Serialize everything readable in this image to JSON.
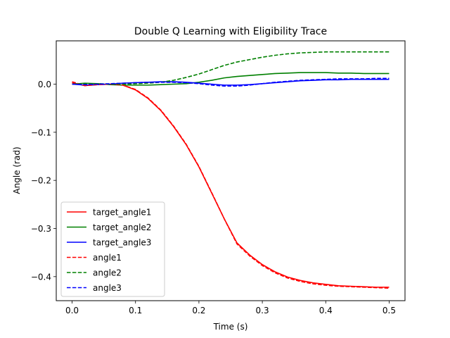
{
  "chart_data": {
    "type": "line",
    "title": "Double Q Learning with Eligibility Trace",
    "xlabel": "Time (s)",
    "ylabel": "Angle (rad)",
    "xlim": [
      -0.025,
      0.525
    ],
    "ylim": [
      -0.45,
      0.09
    ],
    "xticks": [
      0.0,
      0.1,
      0.2,
      0.3,
      0.4,
      0.5
    ],
    "xtick_labels": [
      "0.0",
      "0.1",
      "0.2",
      "0.3",
      "0.4",
      "0.5"
    ],
    "yticks": [
      0.0,
      -0.1,
      -0.2,
      -0.3,
      -0.4
    ],
    "ytick_labels": [
      "0.0",
      "−0.1",
      "−0.2",
      "−0.3",
      "−0.4"
    ],
    "grid": false,
    "legend_position": "lower-left",
    "series": [
      {
        "name": "target_angle1",
        "color": "#ff0000",
        "dash": "solid",
        "x": [
          0.0,
          0.02,
          0.04,
          0.06,
          0.08,
          0.1,
          0.12,
          0.14,
          0.16,
          0.18,
          0.2,
          0.22,
          0.24,
          0.26,
          0.28,
          0.3,
          0.32,
          0.34,
          0.36,
          0.38,
          0.4,
          0.42,
          0.44,
          0.46,
          0.48,
          0.5
        ],
        "y": [
          0.003,
          -0.003,
          -0.001,
          0.0,
          -0.002,
          -0.012,
          -0.03,
          -0.055,
          -0.088,
          -0.126,
          -0.172,
          -0.226,
          -0.28,
          -0.33,
          -0.355,
          -0.375,
          -0.39,
          -0.401,
          -0.408,
          -0.413,
          -0.416,
          -0.419,
          -0.42,
          -0.421,
          -0.422,
          -0.422
        ]
      },
      {
        "name": "target_angle2",
        "color": "#008000",
        "dash": "solid",
        "x": [
          0.0,
          0.02,
          0.04,
          0.06,
          0.08,
          0.1,
          0.12,
          0.14,
          0.16,
          0.18,
          0.2,
          0.22,
          0.24,
          0.26,
          0.28,
          0.3,
          0.32,
          0.34,
          0.36,
          0.38,
          0.4,
          0.42,
          0.44,
          0.46,
          0.48,
          0.5
        ],
        "y": [
          0.0,
          0.002,
          0.001,
          -0.001,
          -0.002,
          -0.002,
          -0.002,
          -0.001,
          0.0,
          0.001,
          0.004,
          0.008,
          0.013,
          0.016,
          0.018,
          0.02,
          0.022,
          0.023,
          0.024,
          0.024,
          0.024,
          0.023,
          0.023,
          0.022,
          0.022,
          0.022
        ]
      },
      {
        "name": "target_angle3",
        "color": "#0000ff",
        "dash": "solid",
        "x": [
          0.0,
          0.02,
          0.04,
          0.06,
          0.08,
          0.1,
          0.12,
          0.14,
          0.16,
          0.18,
          0.2,
          0.22,
          0.24,
          0.26,
          0.28,
          0.3,
          0.32,
          0.34,
          0.36,
          0.38,
          0.4,
          0.42,
          0.44,
          0.46,
          0.48,
          0.5
        ],
        "y": [
          0.0,
          -0.002,
          -0.001,
          0.0,
          0.002,
          0.003,
          0.004,
          0.005,
          0.005,
          0.004,
          0.002,
          0.0,
          -0.002,
          -0.002,
          -0.001,
          0.001,
          0.003,
          0.005,
          0.007,
          0.008,
          0.009,
          0.009,
          0.01,
          0.01,
          0.01,
          0.01
        ]
      },
      {
        "name": "angle1",
        "color": "#ff0000",
        "dash": "dashed",
        "x": [
          0.0,
          0.02,
          0.04,
          0.06,
          0.08,
          0.1,
          0.12,
          0.14,
          0.16,
          0.18,
          0.2,
          0.22,
          0.24,
          0.26,
          0.28,
          0.3,
          0.32,
          0.34,
          0.36,
          0.38,
          0.4,
          0.42,
          0.44,
          0.46,
          0.48,
          0.5
        ],
        "y": [
          0.005,
          -0.003,
          -0.001,
          0.0,
          -0.002,
          -0.011,
          -0.029,
          -0.054,
          -0.087,
          -0.125,
          -0.171,
          -0.225,
          -0.28,
          -0.332,
          -0.357,
          -0.377,
          -0.392,
          -0.403,
          -0.41,
          -0.415,
          -0.418,
          -0.42,
          -0.421,
          -0.422,
          -0.423,
          -0.424
        ]
      },
      {
        "name": "angle2",
        "color": "#008000",
        "dash": "dashed",
        "x": [
          0.0,
          0.02,
          0.04,
          0.06,
          0.08,
          0.1,
          0.12,
          0.14,
          0.16,
          0.18,
          0.2,
          0.22,
          0.24,
          0.26,
          0.28,
          0.3,
          0.32,
          0.34,
          0.36,
          0.38,
          0.4,
          0.42,
          0.44,
          0.46,
          0.48,
          0.5
        ],
        "y": [
          0.0,
          0.001,
          0.001,
          0.0,
          0.0,
          0.001,
          0.002,
          0.004,
          0.008,
          0.014,
          0.021,
          0.03,
          0.039,
          0.046,
          0.051,
          0.056,
          0.06,
          0.063,
          0.065,
          0.066,
          0.067,
          0.067,
          0.067,
          0.067,
          0.067,
          0.067
        ]
      },
      {
        "name": "angle3",
        "color": "#0000ff",
        "dash": "dashed",
        "x": [
          0.0,
          0.02,
          0.04,
          0.06,
          0.08,
          0.1,
          0.12,
          0.14,
          0.16,
          0.18,
          0.2,
          0.22,
          0.24,
          0.26,
          0.28,
          0.3,
          0.32,
          0.34,
          0.36,
          0.38,
          0.4,
          0.42,
          0.44,
          0.46,
          0.48,
          0.5
        ],
        "y": [
          0.0,
          -0.001,
          0.0,
          0.001,
          0.002,
          0.003,
          0.004,
          0.004,
          0.004,
          0.003,
          0.001,
          -0.002,
          -0.004,
          -0.004,
          -0.002,
          0.001,
          0.004,
          0.006,
          0.008,
          0.009,
          0.01,
          0.011,
          0.011,
          0.011,
          0.012,
          0.012
        ]
      }
    ]
  }
}
